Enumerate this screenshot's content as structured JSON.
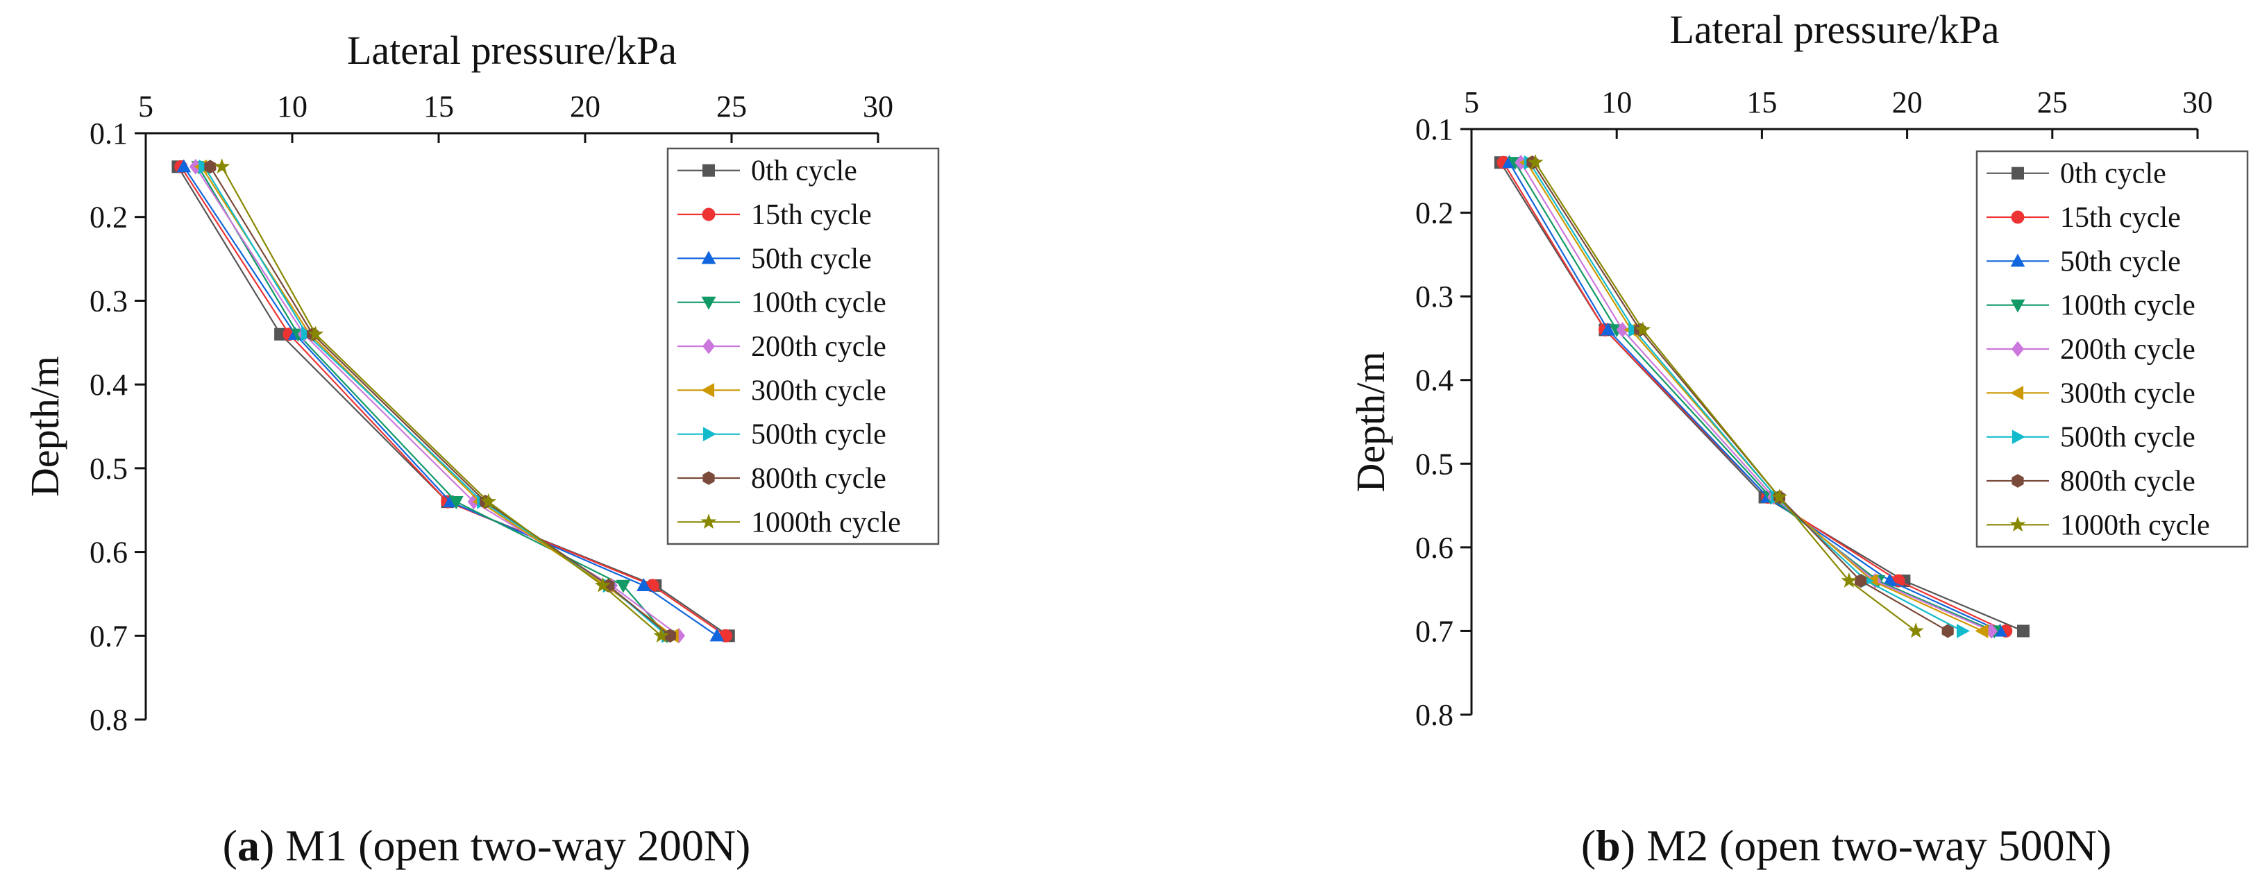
{
  "chart_data": [
    {
      "type": "line",
      "xlabel": "Lateral pressure/kPa",
      "ylabel": "Depth/m",
      "xlim": [
        5,
        30
      ],
      "ylim": [
        0.1,
        0.8
      ],
      "x_ticks": [
        "5",
        "10",
        "15",
        "20",
        "25",
        "30"
      ],
      "y_ticks": [
        "0.1",
        "0.2",
        "0.3",
        "0.4",
        "0.5",
        "0.6",
        "0.7",
        "0.8"
      ],
      "x_axis_position": "top",
      "y_axis_inverted": true,
      "grid": false,
      "legend_position": "top-right",
      "caption_label": "a",
      "caption_text": " M1 (open two-way 200N)",
      "depths": [
        0.14,
        0.34,
        0.54,
        0.64,
        0.7
      ],
      "series": [
        {
          "name": "0th cycle",
          "marker": "square",
          "color": "#555555",
          "x": [
            6.1,
            9.6,
            15.3,
            22.4,
            24.9
          ]
        },
        {
          "name": "15th cycle",
          "marker": "circle",
          "color": "#ee3333",
          "x": [
            6.2,
            9.9,
            15.3,
            22.3,
            24.8
          ]
        },
        {
          "name": "50th cycle",
          "marker": "triangle-up",
          "color": "#1166dd",
          "x": [
            6.3,
            10.1,
            15.4,
            22.0,
            24.5
          ]
        },
        {
          "name": "100th cycle",
          "marker": "triangle-down",
          "color": "#119966",
          "x": [
            6.8,
            10.2,
            15.6,
            21.3,
            22.8
          ]
        },
        {
          "name": "200th cycle",
          "marker": "diamond",
          "color": "#cc77dd",
          "x": [
            6.7,
            10.4,
            16.2,
            20.9,
            23.2
          ]
        },
        {
          "name": "300th cycle",
          "marker": "triangle-left",
          "color": "#cc9900",
          "x": [
            6.9,
            10.6,
            16.4,
            20.7,
            23.0
          ]
        },
        {
          "name": "500th cycle",
          "marker": "triangle-right",
          "color": "#11bbcc",
          "x": [
            7.0,
            10.5,
            16.5,
            20.8,
            22.8
          ]
        },
        {
          "name": "800th cycle",
          "marker": "hexagon",
          "color": "#7a4a3a",
          "x": [
            7.2,
            10.7,
            16.6,
            20.8,
            22.9
          ]
        },
        {
          "name": "1000th cycle",
          "marker": "star",
          "color": "#888800",
          "x": [
            7.6,
            10.8,
            16.7,
            20.6,
            22.6
          ]
        }
      ]
    },
    {
      "type": "line",
      "xlabel": "Lateral pressure/kPa",
      "ylabel": "Depth/m",
      "xlim": [
        5,
        30
      ],
      "ylim": [
        0.1,
        0.8
      ],
      "x_ticks": [
        "5",
        "10",
        "15",
        "20",
        "25",
        "30"
      ],
      "y_ticks": [
        "0.1",
        "0.2",
        "0.3",
        "0.4",
        "0.5",
        "0.6",
        "0.7",
        "0.8"
      ],
      "x_axis_position": "top",
      "y_axis_inverted": true,
      "grid": false,
      "legend_position": "top-right",
      "caption_label": "b",
      "caption_text": " M2 (open two-way 500N)",
      "depths": [
        0.14,
        0.34,
        0.54,
        0.64,
        0.7
      ],
      "series": [
        {
          "name": "0th cycle",
          "marker": "square",
          "color": "#555555",
          "x": [
            6.0,
            9.6,
            15.1,
            19.9,
            24.0
          ]
        },
        {
          "name": "15th cycle",
          "marker": "circle",
          "color": "#ee3333",
          "x": [
            6.1,
            9.6,
            15.2,
            19.7,
            23.4
          ]
        },
        {
          "name": "50th cycle",
          "marker": "triangle-up",
          "color": "#1166dd",
          "x": [
            6.3,
            9.7,
            15.2,
            19.4,
            23.2
          ]
        },
        {
          "name": "100th cycle",
          "marker": "triangle-down",
          "color": "#119966",
          "x": [
            6.5,
            10.0,
            15.3,
            19.0,
            23.0
          ]
        },
        {
          "name": "200th cycle",
          "marker": "diamond",
          "color": "#cc77dd",
          "x": [
            6.7,
            10.2,
            15.4,
            18.9,
            22.9
          ]
        },
        {
          "name": "300th cycle",
          "marker": "triangle-left",
          "color": "#cc9900",
          "x": [
            6.9,
            10.5,
            15.5,
            18.8,
            22.6
          ]
        },
        {
          "name": "500th cycle",
          "marker": "triangle-right",
          "color": "#11bbcc",
          "x": [
            7.0,
            10.6,
            15.5,
            18.6,
            21.9
          ]
        },
        {
          "name": "800th cycle",
          "marker": "hexagon",
          "color": "#7a4a3a",
          "x": [
            7.1,
            10.8,
            15.6,
            18.4,
            21.4
          ]
        },
        {
          "name": "1000th cycle",
          "marker": "star",
          "color": "#888800",
          "x": [
            7.2,
            10.9,
            15.6,
            18.0,
            20.3
          ]
        }
      ]
    }
  ]
}
